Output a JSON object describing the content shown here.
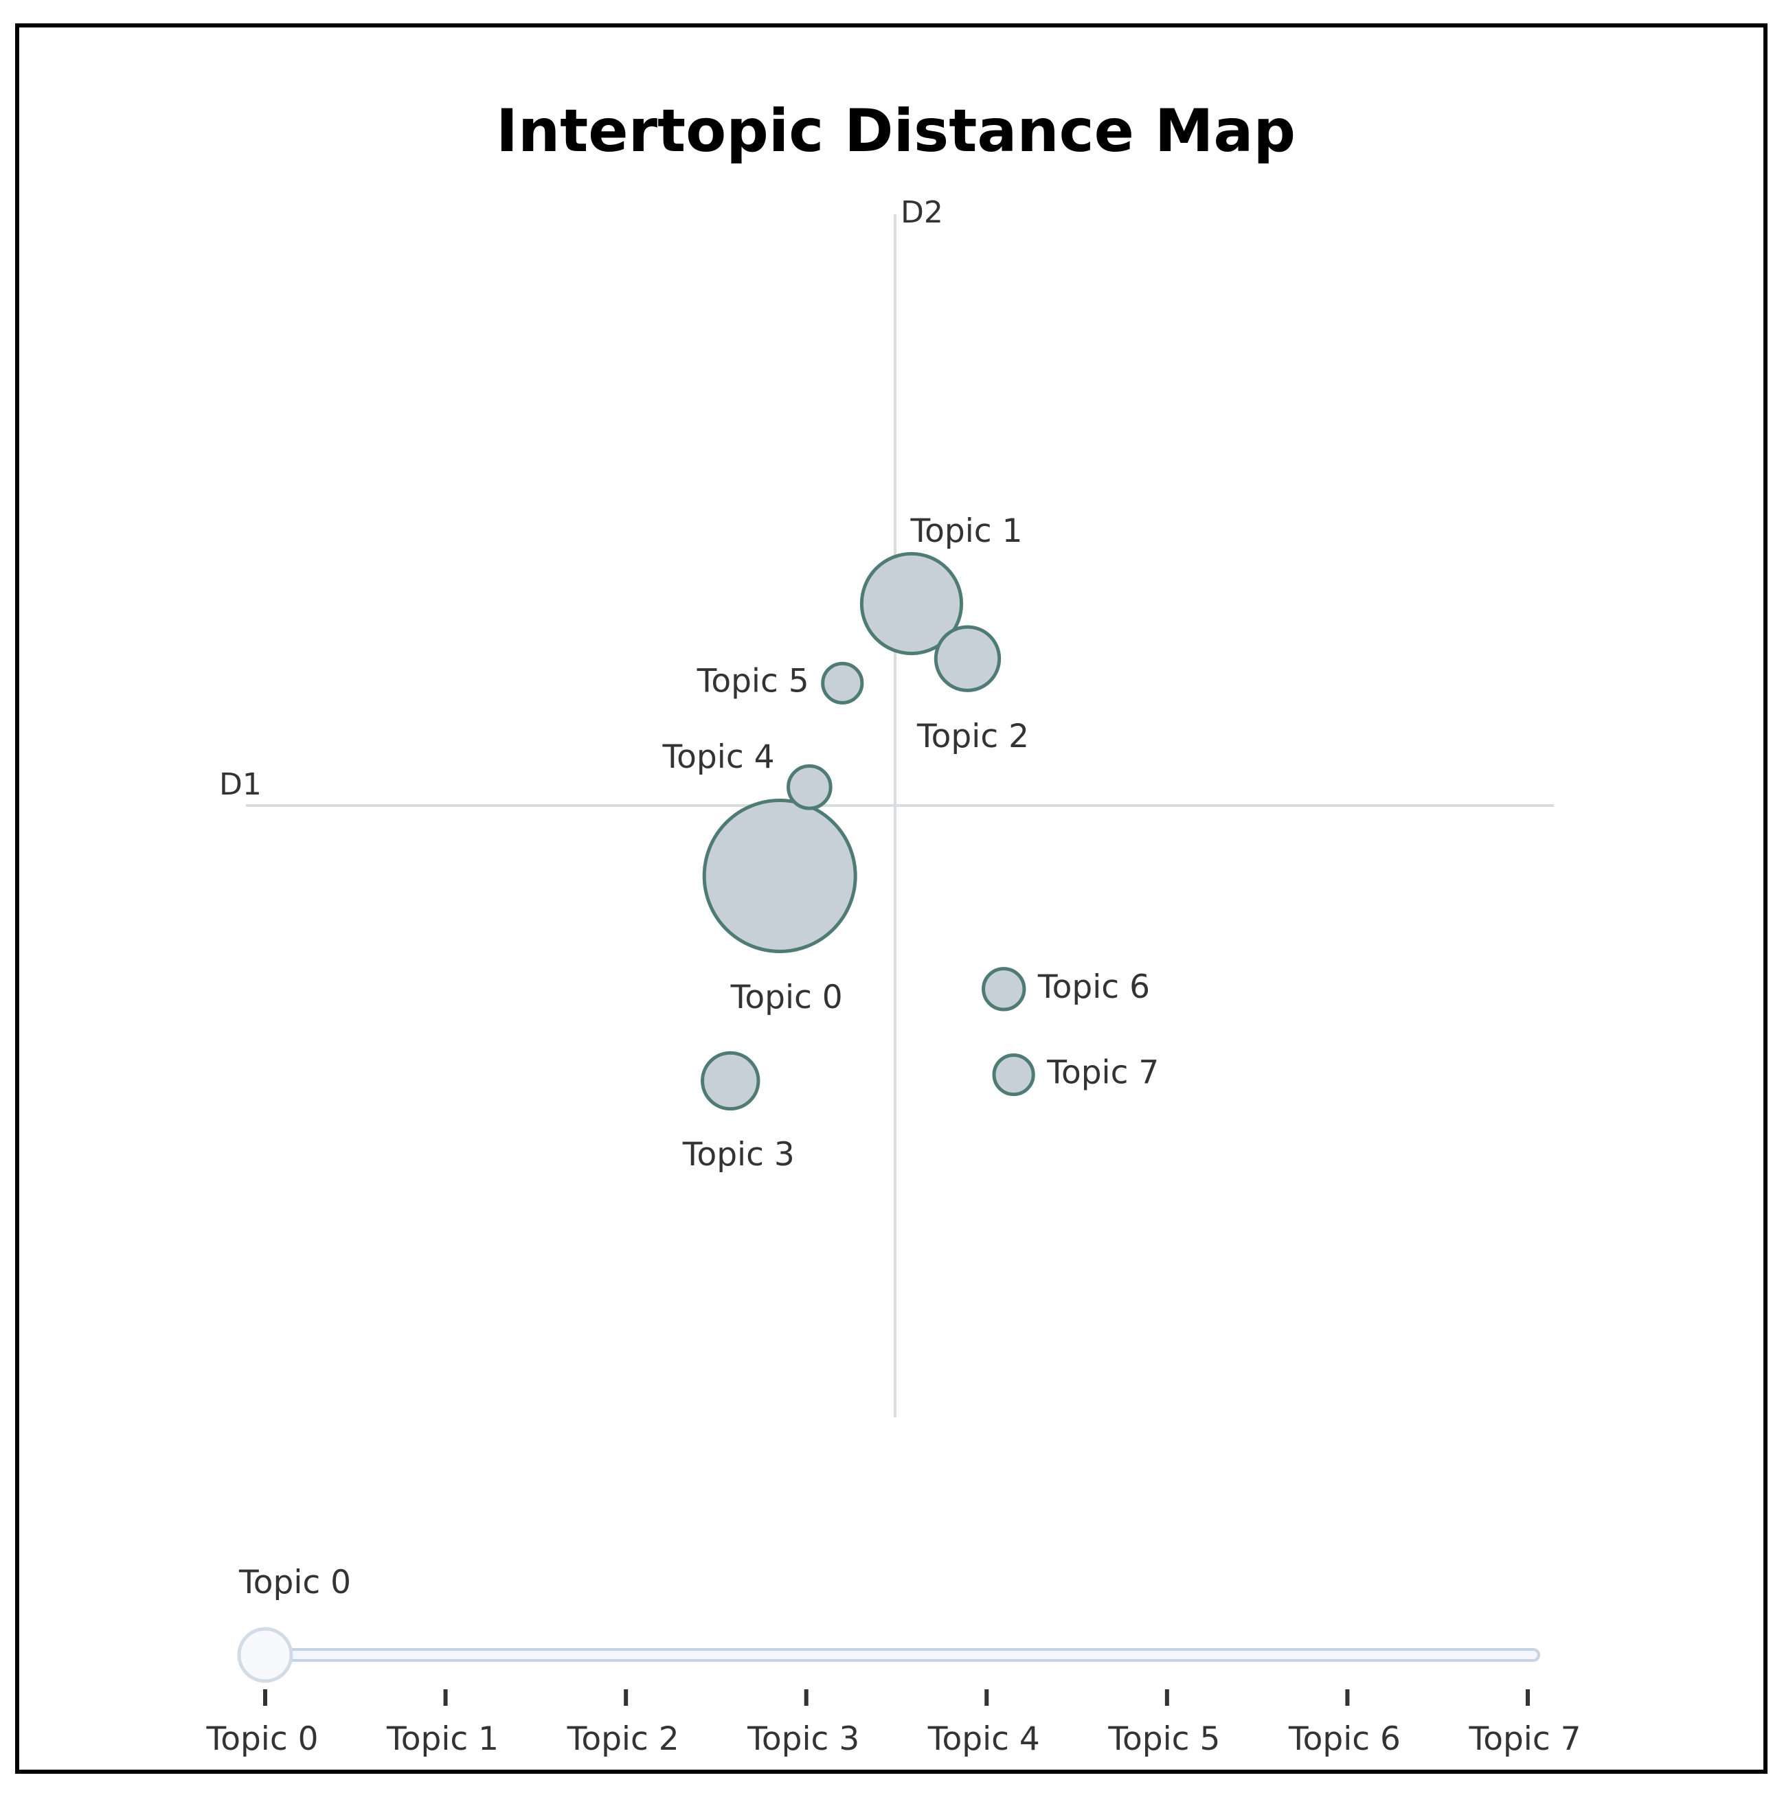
{
  "chart_data": {
    "type": "scatter",
    "title": "Intertopic Distance Map",
    "xlabel": "D1",
    "ylabel": "D2",
    "xlim": [
      -10,
      10
    ],
    "ylim": [
      -10,
      10
    ],
    "grid": false,
    "points": [
      {
        "label": "Topic 0",
        "x": -1.75,
        "y": -1.15,
        "size": 1.0
      },
      {
        "label": "Topic 1",
        "x": 0.25,
        "y": 3.3,
        "size": 0.66
      },
      {
        "label": "Topic 2",
        "x": 1.1,
        "y": 2.4,
        "size": 0.42
      },
      {
        "label": "Topic 3",
        "x": -2.5,
        "y": -4.5,
        "size": 0.37
      },
      {
        "label": "Topic 4",
        "x": -1.3,
        "y": 0.3,
        "size": 0.28
      },
      {
        "label": "Topic 5",
        "x": -0.8,
        "y": 2.0,
        "size": 0.26
      },
      {
        "label": "Topic 6",
        "x": 1.65,
        "y": -3.0,
        "size": 0.27
      },
      {
        "label": "Topic 7",
        "x": 1.8,
        "y": -4.4,
        "size": 0.26
      }
    ],
    "colors": {
      "marker_fill": "#c7d0d6",
      "marker_stroke": "#4f7b75",
      "axis_line": "#d9dde0"
    }
  },
  "slider": {
    "current_label": "Topic 0",
    "selected_index": 0,
    "ticks": [
      "Topic 0",
      "Topic 1",
      "Topic 2",
      "Topic 3",
      "Topic 4",
      "Topic 5",
      "Topic 6",
      "Topic 7"
    ],
    "colors": {
      "track_stroke": "#c5d3e3",
      "track_fill": "#f3f6fa",
      "handle_fill": "#f7f9fc",
      "handle_stroke": "#d2dbe6",
      "tick": "#333333"
    }
  }
}
